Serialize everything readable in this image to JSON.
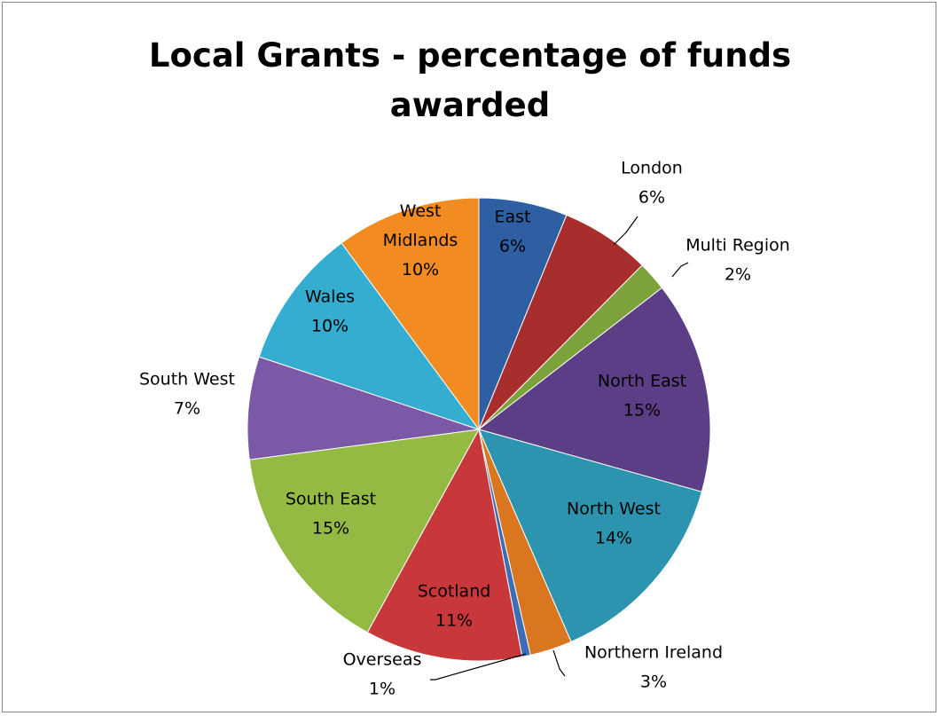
{
  "chart_data": {
    "type": "pie",
    "title": "Local Grants - percentage of funds awarded",
    "title_lines": [
      "Local Grants - percentage of funds",
      "awarded"
    ],
    "slices": [
      {
        "name": "East",
        "name_lines": [
          "East"
        ],
        "pct_label": "6%",
        "value": 6.3,
        "color": "#2E5FA3"
      },
      {
        "name": "London",
        "name_lines": [
          "London"
        ],
        "pct_label": "6%",
        "value": 6.4,
        "color": "#A72E2C"
      },
      {
        "name": "Multi Region",
        "name_lines": [
          "Multi Region"
        ],
        "pct_label": "2%",
        "value": 2.1,
        "color": "#7CA23B"
      },
      {
        "name": "North East",
        "name_lines": [
          "North East"
        ],
        "pct_label": "15%",
        "value": 15.1,
        "color": "#5B3E85"
      },
      {
        "name": "North West",
        "name_lines": [
          "North West"
        ],
        "pct_label": "14%",
        "value": 14.4,
        "color": "#2C94AE"
      },
      {
        "name": "Northern Ireland",
        "name_lines": [
          "Northern Ireland"
        ],
        "pct_label": "3%",
        "value": 3.0,
        "color": "#D9761F"
      },
      {
        "name": "Overseas",
        "name_lines": [
          "Overseas"
        ],
        "pct_label": "1%",
        "value": 0.6,
        "color": "#3D6DB5"
      },
      {
        "name": "Scotland",
        "name_lines": [
          "Scotland"
        ],
        "pct_label": "11%",
        "value": 11.2,
        "color": "#C8383A"
      },
      {
        "name": "South East",
        "name_lines": [
          "South East"
        ],
        "pct_label": "15%",
        "value": 15.2,
        "color": "#95BA44"
      },
      {
        "name": "South West",
        "name_lines": [
          "South West"
        ],
        "pct_label": "7%",
        "value": 7.3,
        "color": "#7B59A6"
      },
      {
        "name": "Wales",
        "name_lines": [
          "Wales"
        ],
        "pct_label": "10%",
        "value": 10.0,
        "color": "#35ADD0"
      },
      {
        "name": "West Midlands",
        "name_lines": [
          "West",
          "Midlands"
        ],
        "pct_label": "10%",
        "value": 10.3,
        "color": "#F28B22"
      }
    ]
  }
}
